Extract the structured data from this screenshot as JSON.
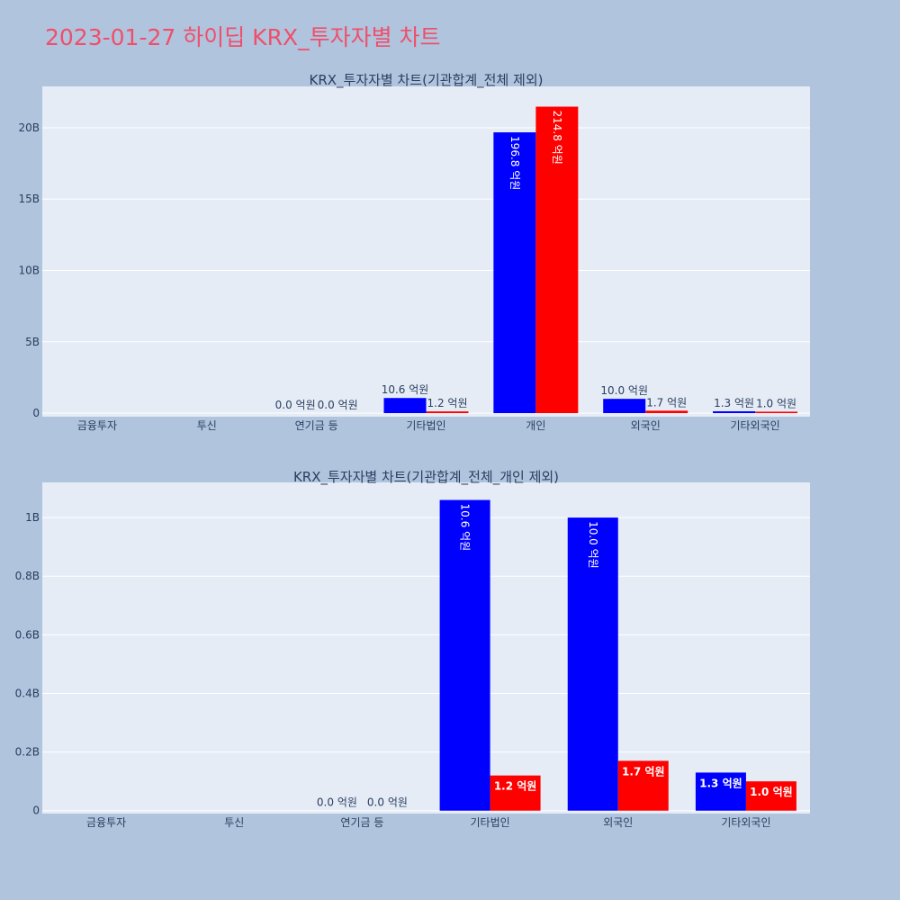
{
  "page": {
    "title": "2023-01-27 하이딥 KRX_투자자별 차트",
    "title_color": "#ef4f6a",
    "background": "#b0c4de",
    "plot_background": "#e5ecf6"
  },
  "chart_data": [
    {
      "type": "bar",
      "title": "KRX_투자자별 차트(기관합계_전체 제외)",
      "categories": [
        "금융투자",
        "투신",
        "연기금 등",
        "기타법인",
        "개인",
        "외국인",
        "기타외국인"
      ],
      "series": [
        {
          "color": "#0000ff",
          "values": [
            0,
            0,
            0,
            1060000000,
            19680000000,
            1000000000,
            130000000
          ],
          "labels": [
            "",
            "",
            "0.0 억원",
            "10.6 억원",
            "196.8 억원",
            "10.0 억원",
            "1.3 억원"
          ]
        },
        {
          "color": "#ff0000",
          "values": [
            0,
            0,
            0,
            120000000,
            21480000000,
            170000000,
            100000000
          ],
          "labels": [
            "",
            "",
            "0.0 억원",
            "1.2 억원",
            "214.8 억원",
            "1.7 억원",
            "1.0 억원"
          ]
        }
      ],
      "y_ticks": [
        0,
        5000000000,
        10000000000,
        15000000000,
        20000000000
      ],
      "y_tick_labels": [
        "0",
        "5B",
        "10B",
        "15B",
        "20B"
      ],
      "ylim": [
        -250000000,
        22900000000
      ],
      "grid": true
    },
    {
      "type": "bar",
      "title": "KRX_투자자별 차트(기관합계_전체_개인 제외)",
      "categories": [
        "금융투자",
        "투신",
        "연기금 등",
        "기타법인",
        "외국인",
        "기타외국인"
      ],
      "series": [
        {
          "color": "#0000ff",
          "values": [
            0,
            0,
            0,
            1060000000,
            1000000000,
            130000000
          ],
          "labels": [
            "",
            "",
            "0.0 억원",
            "10.6 억원",
            "10.0 억원",
            "1.3 억원"
          ]
        },
        {
          "color": "#ff0000",
          "values": [
            0,
            0,
            0,
            120000000,
            170000000,
            100000000
          ],
          "labels": [
            "",
            "",
            "0.0 억원",
            "1.2 억원",
            "1.7 억원",
            "1.0 억원"
          ]
        }
      ],
      "y_ticks": [
        0,
        200000000,
        400000000,
        600000000,
        800000000,
        1000000000
      ],
      "y_tick_labels": [
        "0",
        "0.2B",
        "0.4B",
        "0.6B",
        "0.8B",
        "1B"
      ],
      "ylim": [
        -10000000,
        1120000000
      ],
      "grid": true
    }
  ]
}
